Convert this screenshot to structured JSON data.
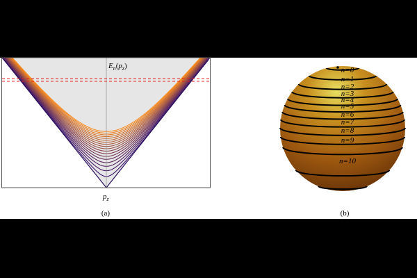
{
  "panel_a": {
    "energy_label": [
      "E",
      "n",
      "(",
      "p",
      "z",
      ")"
    ],
    "axis_label": [
      "p",
      "z"
    ],
    "caption": "(a)"
  },
  "panel_b": {
    "levels": [
      "n=0",
      "n=1",
      "n=2",
      "n=3",
      "n=4",
      "n=5",
      "n=6",
      "n=7",
      "n=8",
      "n=9",
      "n=10"
    ],
    "caption": "(b)"
  }
}
